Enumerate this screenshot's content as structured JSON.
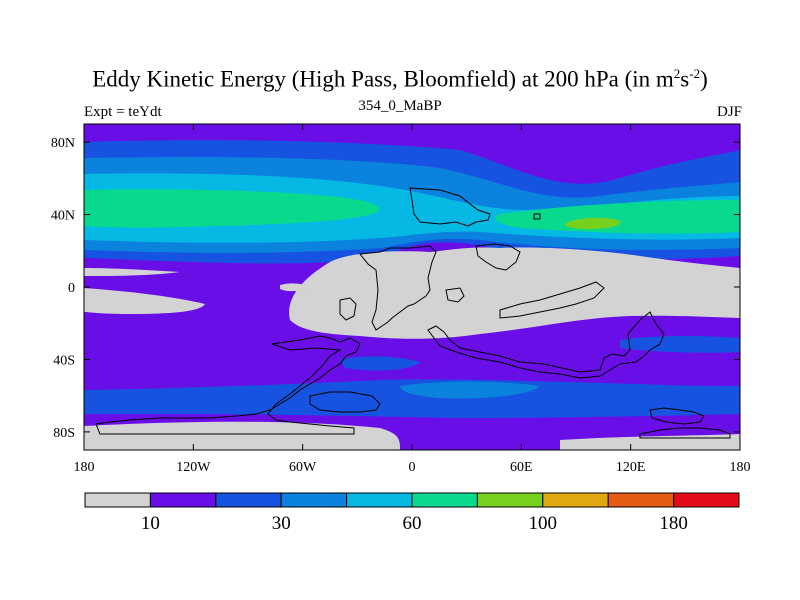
{
  "title": {
    "main": "Eddy Kinetic Energy (High Pass, Bloomfield) at 200 hPa (in m",
    "sup1": "2",
    "mid": "s",
    "sup2": "-2",
    "end": ")"
  },
  "subtitle": "354_0_MaBP",
  "left_label": "Expt = teYdt",
  "right_label": "DJF",
  "lat_ticks": [
    {
      "label": "80N",
      "value": 80
    },
    {
      "label": "40N",
      "value": 40
    },
    {
      "label": "0",
      "value": 0
    },
    {
      "label": "40S",
      "value": -40
    },
    {
      "label": "80S",
      "value": -80
    }
  ],
  "lon_ticks": [
    {
      "label": "180",
      "value": -180
    },
    {
      "label": "120W",
      "value": -120
    },
    {
      "label": "60W",
      "value": -60
    },
    {
      "label": "0",
      "value": 0
    },
    {
      "label": "60E",
      "value": 60
    },
    {
      "label": "120E",
      "value": 120
    },
    {
      "label": "180",
      "value": 180
    }
  ],
  "colorbar": {
    "colors": [
      "#d3d3d3",
      "#6a0ee8",
      "#1653e0",
      "#0b82dd",
      "#05b9e4",
      "#09d98c",
      "#77d01c",
      "#e0a80e",
      "#e75c14",
      "#e5091c"
    ],
    "labels": [
      {
        "text": "10",
        "boundary": 1
      },
      {
        "text": "30",
        "boundary": 3
      },
      {
        "text": "60",
        "boundary": 5
      },
      {
        "text": "100",
        "boundary": 7
      },
      {
        "text": "180",
        "boundary": 9
      }
    ]
  },
  "field_colors": {
    "land": "#d3d3d3",
    "level1": "#6a0ee8",
    "level2": "#1653e0",
    "level3": "#0b82dd",
    "level4": "#05b9e4",
    "level5": "#09d98c",
    "level6": "#77d01c"
  }
}
